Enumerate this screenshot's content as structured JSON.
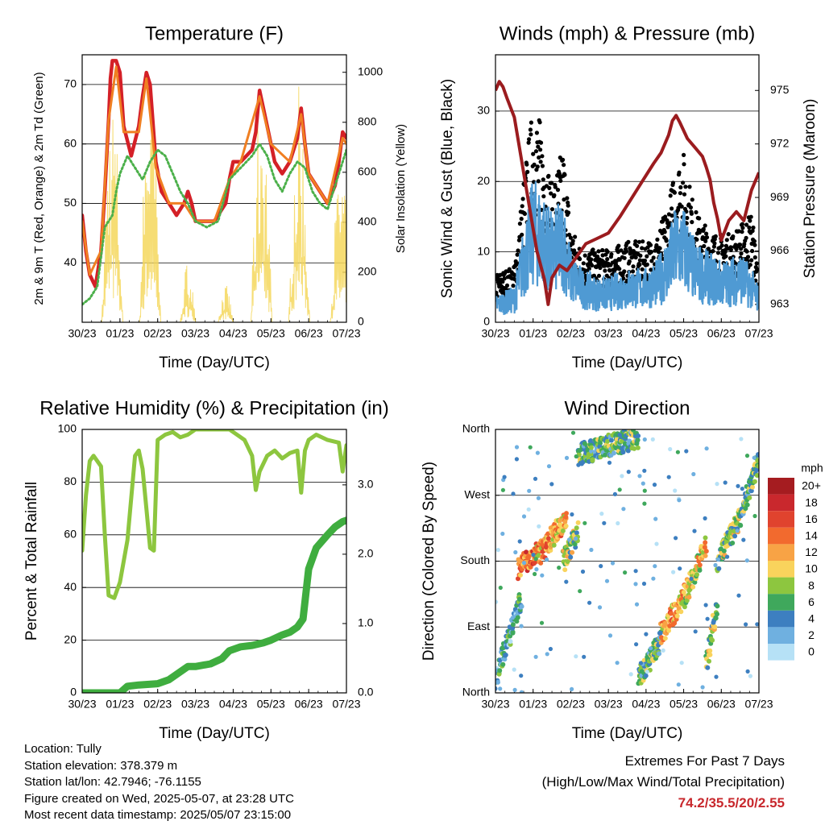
{
  "chart_data": [
    {
      "type": "line",
      "title": "Temperature (F)",
      "xlabel": "Time (Day/UTC)",
      "ylabel": "2m & 9m T (Red, Orange) & 2m Td (Green)",
      "ylabel_right": "Solar Insolation (Yellow)",
      "x_ticks": [
        "30/23",
        "01/23",
        "02/23",
        "03/23",
        "04/23",
        "05/23",
        "06/23",
        "07/23"
      ],
      "xlim": [
        0,
        7
      ],
      "ylim": [
        30,
        75
      ],
      "y_ticks": [
        40,
        50,
        60,
        70
      ],
      "ylim_right": [
        0,
        1070
      ],
      "y_ticks_right": [
        0,
        200,
        400,
        600,
        800,
        1000
      ],
      "grid": true,
      "series": [
        {
          "color": "#d42027",
          "x": [
            0,
            0.1,
            0.2,
            0.35,
            0.5,
            0.6,
            0.7,
            0.75,
            0.8,
            0.9,
            1.0,
            1.1,
            1.3,
            1.5,
            1.6,
            1.7,
            1.8,
            1.95,
            2.1,
            2.3,
            2.5,
            2.7,
            2.8,
            2.9,
            3.0,
            3.2,
            3.5,
            3.8,
            3.9,
            4.0,
            4.2,
            4.5,
            4.6,
            4.7,
            4.8,
            5.0,
            5.1,
            5.3,
            5.5,
            5.7,
            5.8,
            5.9,
            6.0,
            6.3,
            6.5,
            6.7,
            6.8,
            6.9,
            7.0
          ],
          "y": [
            48,
            42,
            38,
            36,
            42,
            52,
            64,
            71,
            74,
            74,
            72,
            63,
            58,
            63,
            68,
            72,
            70,
            57,
            52,
            50,
            48,
            50,
            52,
            50,
            47,
            47,
            47,
            50,
            54,
            57,
            57,
            59,
            62,
            69,
            66,
            60,
            57,
            55,
            57,
            61,
            66,
            60,
            55,
            52,
            50,
            53,
            57,
            62,
            61
          ]
        },
        {
          "color": "#f07f22",
          "x": [
            0,
            0.2,
            0.5,
            0.7,
            0.9,
            1.1,
            1.5,
            1.7,
            1.95,
            2.3,
            2.7,
            3.0,
            3.5,
            3.9,
            4.2,
            4.7,
            5.0,
            5.5,
            5.8,
            6.0,
            6.5,
            6.9,
            7.0
          ],
          "y": [
            47,
            38,
            42,
            64,
            73,
            62,
            62,
            71,
            56,
            50,
            50,
            47,
            47,
            54,
            57,
            68,
            60,
            57,
            65,
            55,
            50,
            61,
            60
          ]
        },
        {
          "color": "#4bb04a",
          "x": [
            0,
            0.2,
            0.4,
            0.6,
            0.8,
            0.9,
            1.0,
            1.2,
            1.4,
            1.6,
            1.8,
            2.0,
            2.2,
            2.4,
            2.6,
            2.8,
            3.0,
            3.3,
            3.6,
            3.9,
            4.2,
            4.5,
            4.7,
            4.9,
            5.1,
            5.3,
            5.5,
            5.7,
            5.9,
            6.1,
            6.3,
            6.5,
            6.7,
            6.9,
            7.0
          ],
          "y": [
            33,
            34,
            36,
            46,
            48,
            52,
            55,
            58,
            56,
            54,
            57,
            59,
            58,
            55,
            52,
            50,
            47,
            46,
            47,
            54,
            56,
            58,
            60,
            58,
            54,
            52,
            55,
            57,
            56,
            52,
            50,
            49,
            53,
            57,
            59
          ]
        }
      ],
      "series_right": {
        "color": "#f5d75c",
        "peaks": [
          {
            "x": 0.8,
            "y": 950
          },
          {
            "x": 1.8,
            "y": 1030
          },
          {
            "x": 2.8,
            "y": 250
          },
          {
            "x": 3.8,
            "y": 150
          },
          {
            "x": 4.75,
            "y": 980
          },
          {
            "x": 5.75,
            "y": 950
          },
          {
            "x": 6.85,
            "y": 650
          }
        ]
      }
    },
    {
      "type": "scatter",
      "title": "Winds (mph) & Pressure (mb)",
      "xlabel": "Time (Day/UTC)",
      "ylabel": "Sonic Wind & Gust (Blue, Black)",
      "ylabel_right": "Station Pressure (Maroon)",
      "x_ticks": [
        "30/23",
        "01/23",
        "02/23",
        "03/23",
        "04/23",
        "05/23",
        "06/23",
        "07/23"
      ],
      "xlim": [
        0,
        7
      ],
      "ylim": [
        0,
        38
      ],
      "y_ticks": [
        0,
        10,
        20,
        30
      ],
      "ylim_right": [
        962,
        977
      ],
      "y_ticks_right": [
        963,
        966,
        969,
        972,
        975
      ],
      "grid": true,
      "pressure": {
        "color": "#9b1c1f",
        "x": [
          0,
          0.1,
          0.2,
          0.3,
          0.5,
          0.7,
          0.9,
          1.1,
          1.3,
          1.4,
          1.5,
          1.7,
          1.9,
          2.1,
          2.4,
          2.7,
          3.0,
          3.3,
          3.6,
          3.9,
          4.2,
          4.4,
          4.6,
          4.7,
          4.8,
          4.9,
          5.1,
          5.3,
          5.5,
          5.6,
          5.7,
          5.8,
          5.9,
          6.0,
          6.2,
          6.4,
          6.6,
          6.8,
          7.0
        ],
        "y": [
          975,
          975.5,
          975.2,
          974.6,
          973.5,
          971,
          968.5,
          966,
          964.4,
          963,
          964.5,
          965.2,
          964.9,
          965.5,
          966.4,
          966.7,
          967,
          967.9,
          968.9,
          969.9,
          970.9,
          971.5,
          972.5,
          973.3,
          973.6,
          973.2,
          972.3,
          971.8,
          971.3,
          970.7,
          970,
          968.7,
          967.8,
          966.6,
          967.7,
          968.2,
          967.7,
          969.4,
          970.4
        ]
      },
      "sustained": {
        "color": "#4f9ad3",
        "x": [
          0,
          0.5,
          0.8,
          1.0,
          1.2,
          1.5,
          1.8,
          2.0,
          2.3,
          2.7,
          3.0,
          3.5,
          4.0,
          4.3,
          4.6,
          4.8,
          5.0,
          5.3,
          5.6,
          5.9,
          6.2,
          6.5,
          6.8,
          7.0
        ],
        "y": [
          3,
          4,
          12,
          16,
          15,
          12,
          14,
          8,
          6,
          5,
          5,
          6,
          6,
          7,
          10,
          13,
          13,
          9,
          8,
          7,
          7,
          8,
          6,
          4
        ]
      },
      "gust": {
        "color": "#000000",
        "x": [
          0,
          0.5,
          0.8,
          1.0,
          1.2,
          1.5,
          1.8,
          2.0,
          2.3,
          2.7,
          3.0,
          3.5,
          4.0,
          4.3,
          4.6,
          4.8,
          5.0,
          5.3,
          5.6,
          5.9,
          6.2,
          6.5,
          6.8,
          7.0
        ],
        "y": [
          6,
          7,
          20,
          27,
          25,
          17,
          22,
          12,
          9,
          9,
          9,
          10,
          10,
          11,
          15,
          20,
          21,
          14,
          12,
          11,
          11,
          12,
          14,
          6
        ]
      }
    },
    {
      "type": "line",
      "title": "Relative Humidity (%) & Precipitation (in)",
      "xlabel": "Time (Day/UTC)",
      "ylabel": "Percent & Total Rainfall",
      "x_ticks": [
        "30/23",
        "01/23",
        "02/23",
        "03/23",
        "04/23",
        "05/23",
        "06/23",
        "07/23"
      ],
      "xlim": [
        0,
        7
      ],
      "ylim": [
        0,
        100
      ],
      "y_ticks": [
        0,
        20,
        40,
        60,
        80,
        100
      ],
      "ylim_right": [
        0,
        3.8
      ],
      "y_ticks_right": [
        "0.0",
        "1.0",
        "2.0",
        "3.0"
      ],
      "grid": true,
      "series": [
        {
          "color": "#8dc63f",
          "x": [
            0,
            0.1,
            0.2,
            0.3,
            0.5,
            0.6,
            0.7,
            0.85,
            1.0,
            1.2,
            1.4,
            1.5,
            1.6,
            1.7,
            1.8,
            1.9,
            2.0,
            2.2,
            2.4,
            2.6,
            2.8,
            3.0,
            3.5,
            3.9,
            4.1,
            4.3,
            4.5,
            4.6,
            4.7,
            4.9,
            5.1,
            5.3,
            5.5,
            5.7,
            5.8,
            5.9,
            6.0,
            6.2,
            6.5,
            6.8,
            6.9,
            7.0
          ],
          "y": [
            54,
            75,
            88,
            90,
            86,
            60,
            37,
            36,
            42,
            58,
            90,
            92,
            85,
            70,
            55,
            54,
            96,
            98,
            99,
            97,
            98,
            100,
            100,
            100,
            98,
            96,
            90,
            77,
            84,
            90,
            92,
            89,
            91,
            92,
            76,
            92,
            96,
            98,
            96,
            95,
            84,
            94
          ]
        },
        {
          "color": "#3fad3f",
          "x": [
            0,
            0.5,
            1.0,
            1.2,
            1.5,
            2.0,
            2.3,
            2.6,
            2.8,
            3.0,
            3.4,
            3.7,
            3.9,
            4.2,
            4.5,
            4.8,
            5.0,
            5.3,
            5.5,
            5.7,
            5.85,
            6.0,
            6.2,
            6.5,
            6.7,
            6.9,
            7.0
          ],
          "y": [
            0,
            0,
            0,
            2.5,
            3,
            3.5,
            5,
            8,
            10,
            10,
            11,
            13,
            16,
            17.5,
            18,
            19,
            20,
            22,
            23,
            25,
            28,
            47,
            55,
            60,
            63,
            65,
            65.5
          ]
        }
      ]
    },
    {
      "type": "scatter",
      "title": "Wind Direction",
      "xlabel": "Time (Day/UTC)",
      "ylabel": "Direction (Colored By Speed)",
      "x_ticks": [
        "30/23",
        "01/23",
        "02/23",
        "03/23",
        "04/23",
        "05/23",
        "06/23",
        "07/23"
      ],
      "xlim": [
        0,
        7
      ],
      "ylim": [
        0,
        360
      ],
      "y_ticks": [
        {
          "v": 0,
          "label": "North"
        },
        {
          "v": 90,
          "label": "East"
        },
        {
          "v": 180,
          "label": "South"
        },
        {
          "v": 270,
          "label": "West"
        },
        {
          "v": 360,
          "label": "North"
        }
      ],
      "grid": true,
      "segments": [
        {
          "x0": 0,
          "x1": 0.7,
          "y0": 20,
          "y1": 130,
          "speed": 4
        },
        {
          "x0": 0.6,
          "x1": 1.1,
          "y0": 170,
          "y1": 190,
          "speed": 14
        },
        {
          "x0": 1.1,
          "x1": 1.9,
          "y0": 185,
          "y1": 240,
          "speed": 12
        },
        {
          "x0": 1.8,
          "x1": 2.2,
          "y0": 180,
          "y1": 220,
          "speed": 8
        },
        {
          "x0": 2.2,
          "x1": 3.8,
          "y0": 325,
          "y1": 350,
          "speed": 6
        },
        {
          "x0": 3.8,
          "x1": 4.4,
          "y0": 20,
          "y1": 70,
          "speed": 6
        },
        {
          "x0": 4.4,
          "x1": 5.0,
          "y0": 80,
          "y1": 130,
          "speed": 12
        },
        {
          "x0": 5.0,
          "x1": 5.6,
          "y0": 130,
          "y1": 200,
          "speed": 10
        },
        {
          "x0": 5.6,
          "x1": 5.9,
          "y0": 40,
          "y1": 120,
          "speed": 8
        },
        {
          "x0": 5.9,
          "x1": 6.5,
          "y0": 180,
          "y1": 240,
          "speed": 8
        },
        {
          "x0": 6.5,
          "x1": 7.0,
          "y0": 240,
          "y1": 320,
          "speed": 6
        }
      ],
      "legend": {
        "title": "mph",
        "labels": [
          "20+",
          "18",
          "16",
          "14",
          "12",
          "10",
          "8",
          "6",
          "4",
          "2",
          "0"
        ],
        "colors": [
          "#a51c20",
          "#c9282d",
          "#e0432e",
          "#f26a2e",
          "#f8a345",
          "#f9d35c",
          "#8dc63f",
          "#3fa85c",
          "#3d7fc0",
          "#6fb0e0",
          "#b6e1f6"
        ]
      }
    }
  ],
  "info": {
    "location": "Location: Tully",
    "elevation": "Station elevation: 378.379 m",
    "latlon": "Station lat/lon: 42.7946; -76.1155",
    "created": "Figure created on Wed, 2025-05-07, at 23:28 UTC",
    "recent": "Most recent data timestamp: 2025/05/07 23:15:00"
  },
  "extremes": {
    "heading": "Extremes For Past 7 Days",
    "subheading": "(High/Low/Max Wind/Total Precipitation)",
    "values": "74.2/35.5/20/2.55",
    "value_color": "#c8282d"
  }
}
